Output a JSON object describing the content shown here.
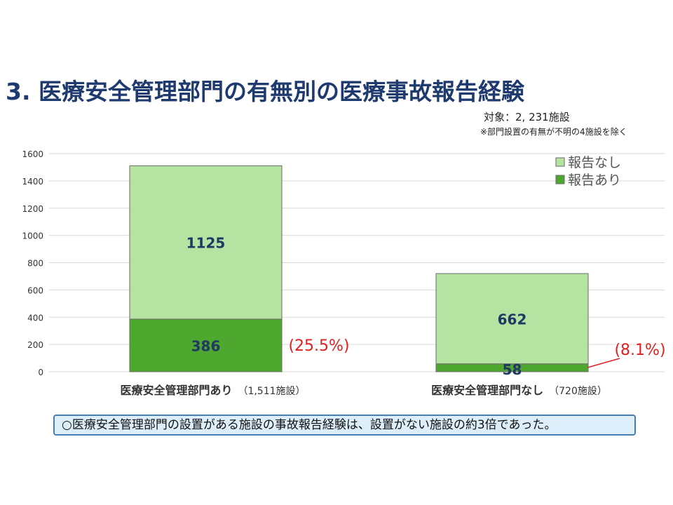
{
  "title": "3. 医療安全管理部門の有無別の医療事故報告経験",
  "subject": "対象：2, 231施設",
  "note": "※部門設置の有無が不明の4施設を除く",
  "conclusion": "○医療安全管理部門の設置がある施設の事故報告経験は、設置がない施設の約3倍であった。",
  "colors": {
    "reported": "#4ea72e",
    "not_reported": "#b5e3a1",
    "grid": "#d9d9d9",
    "value_label": "#1f3864",
    "percent_label": "#e02020"
  },
  "chart_data": {
    "type": "bar",
    "stacked": true,
    "categories": [
      "医療安全管理部門あり",
      "医療安全管理部門なし"
    ],
    "category_notes": [
      "（1,511施設）",
      "（720施設）"
    ],
    "series": [
      {
        "name": "報告あり",
        "values": [
          386,
          58
        ]
      },
      {
        "name": "報告なし",
        "values": [
          1125,
          662
        ]
      }
    ],
    "percent_labels": [
      "(25.5%)",
      "(8.1%)"
    ],
    "ylim": [
      0,
      1600
    ],
    "yticks": [
      0,
      200,
      400,
      600,
      800,
      1000,
      1200,
      1400,
      1600
    ],
    "grid": true,
    "legend_position": "top-right",
    "legend_order": [
      "報告なし",
      "報告あり"
    ]
  }
}
